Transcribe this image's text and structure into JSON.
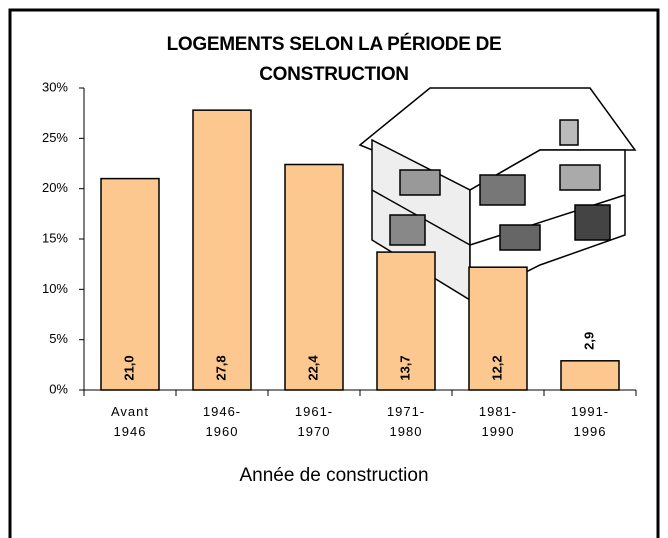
{
  "chart_data": {
    "type": "bar",
    "title": "LOGEMENTS SELON LA PÉRIODE DE CONSTRUCTION",
    "x_label": "Année de construction",
    "categories": [
      "Avant\n1946",
      "1946-\n1960",
      "1961-\n1970",
      "1971-\n1980",
      "1981-\n1990",
      "1991-\n1996"
    ],
    "values": [
      21.0,
      27.8,
      22.4,
      13.7,
      12.2,
      2.9
    ],
    "value_labels": [
      "21,0",
      "27,8",
      "22,4",
      "13,7",
      "12,2",
      "2,9"
    ],
    "color": "#fcc890",
    "ylim": [
      0,
      30
    ],
    "yticks": [
      {
        "value": 0,
        "label": "0%"
      },
      {
        "value": 5,
        "label": "5%"
      },
      {
        "value": 10,
        "label": "10%"
      },
      {
        "value": 15,
        "label": "15%"
      },
      {
        "value": 20,
        "label": "20%"
      },
      {
        "value": 25,
        "label": "25%"
      },
      {
        "value": 30,
        "label": "30%"
      }
    ],
    "grid": false
  }
}
